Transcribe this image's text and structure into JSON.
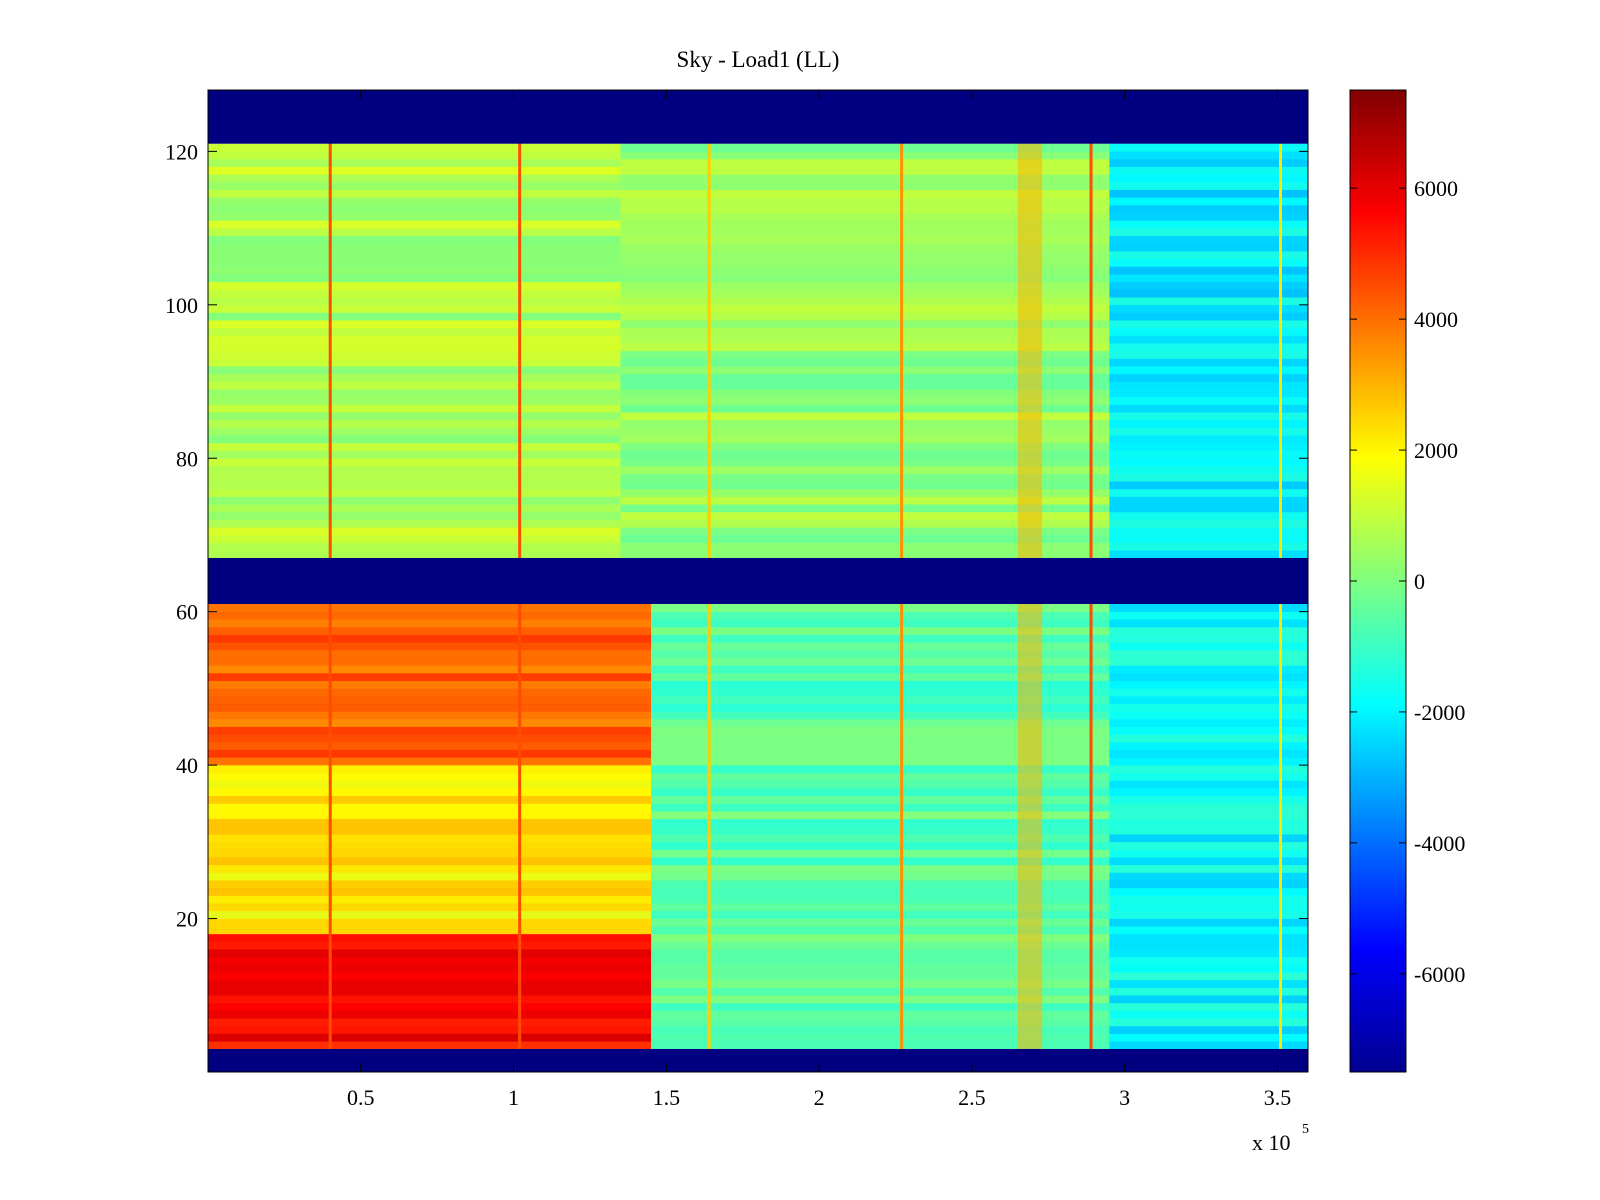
{
  "chart_data": {
    "type": "heatmap",
    "title": "Sky - Load1 (LL)",
    "xlabel": "",
    "ylabel": "",
    "x_multiplier_label": "x 10",
    "x_multiplier_exponent": "5",
    "xlim": [
      0,
      360000
    ],
    "ylim": [
      0,
      128
    ],
    "xticks": [
      {
        "value": 50000,
        "label": "0.5"
      },
      {
        "value": 100000,
        "label": "1"
      },
      {
        "value": 150000,
        "label": "1.5"
      },
      {
        "value": 200000,
        "label": "2"
      },
      {
        "value": 250000,
        "label": "2.5"
      },
      {
        "value": 300000,
        "label": "3"
      },
      {
        "value": 350000,
        "label": "3.5"
      }
    ],
    "yticks": [
      {
        "value": 20,
        "label": "20"
      },
      {
        "value": 40,
        "label": "40"
      },
      {
        "value": 60,
        "label": "60"
      },
      {
        "value": 80,
        "label": "80"
      },
      {
        "value": 100,
        "label": "100"
      },
      {
        "value": 120,
        "label": "120"
      }
    ],
    "colormap": "jet",
    "clim": [
      -7500,
      7500
    ],
    "colorbar_ticks": [
      {
        "value": 6000,
        "label": "6000"
      },
      {
        "value": 4000,
        "label": "4000"
      },
      {
        "value": 2000,
        "label": "2000"
      },
      {
        "value": 0,
        "label": "0"
      },
      {
        "value": -2000,
        "label": "-2000"
      },
      {
        "value": -4000,
        "label": "-4000"
      },
      {
        "value": -6000,
        "label": "-6000"
      }
    ],
    "masked_bands_y": [
      [
        0,
        3
      ],
      [
        61,
        67
      ],
      [
        121,
        128
      ]
    ],
    "regions": [
      {
        "x": [
          0,
          145000
        ],
        "y": [
          3,
          18
        ],
        "value": 5600
      },
      {
        "x": [
          0,
          145000
        ],
        "y": [
          18,
          40
        ],
        "value": 2200
      },
      {
        "x": [
          0,
          145000
        ],
        "y": [
          40,
          61
        ],
        "value": 4200
      },
      {
        "x": [
          145000,
          295000
        ],
        "y": [
          3,
          61
        ],
        "value": -600
      },
      {
        "x": [
          295000,
          360000
        ],
        "y": [
          3,
          61
        ],
        "value": -1900
      },
      {
        "x": [
          0,
          135000
        ],
        "y": [
          67,
          121
        ],
        "value": 700
      },
      {
        "x": [
          135000,
          295000
        ],
        "y": [
          67,
          121
        ],
        "value": 300
      },
      {
        "x": [
          295000,
          360000
        ],
        "y": [
          67,
          121
        ],
        "value": -2100
      }
    ],
    "vertical_lines": [
      {
        "x": 40000,
        "value": 4500
      },
      {
        "x": 102000,
        "value": 4500
      },
      {
        "x": 164000,
        "value": 2600
      },
      {
        "x": 227000,
        "value": 3500
      },
      {
        "x": 289000,
        "value": 4500
      },
      {
        "x": 351000,
        "value": 2200
      }
    ],
    "hot_column": {
      "x": [
        265000,
        273000
      ],
      "value": 3000
    }
  }
}
